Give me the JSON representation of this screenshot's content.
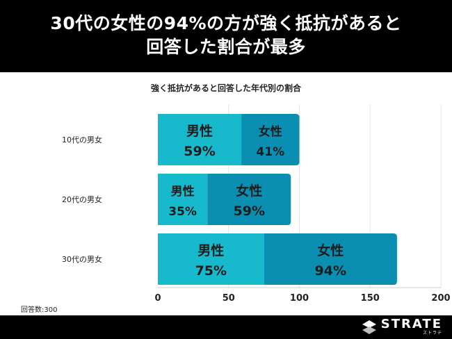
{
  "header": {
    "title_line1": "30代の女性の94%の方が強く抵抗があると",
    "title_line2": "回答した割合が最多"
  },
  "chart_data": {
    "type": "bar",
    "orientation": "horizontal",
    "stacked": true,
    "title": "強く抵抗があると回答した年代別の割合",
    "categories": [
      "10代の男女",
      "20代の男女",
      "30代の男女"
    ],
    "series": [
      {
        "name": "男性",
        "values": [
          59,
          35,
          75
        ],
        "labels": [
          "59%",
          "35%",
          "75%"
        ],
        "color": "#17b9cc"
      },
      {
        "name": "女性",
        "values": [
          41,
          59,
          94
        ],
        "labels": [
          "41%",
          "59%",
          "94%"
        ],
        "color": "#0a8fb3"
      }
    ],
    "xlim": [
      0,
      200
    ],
    "xticks": [
      "0",
      "50",
      "100",
      "150",
      "200"
    ],
    "grid": true,
    "legend": "none"
  },
  "note": "回答数:300",
  "brand": {
    "name": "STRATE",
    "sub": "ストラテ"
  }
}
